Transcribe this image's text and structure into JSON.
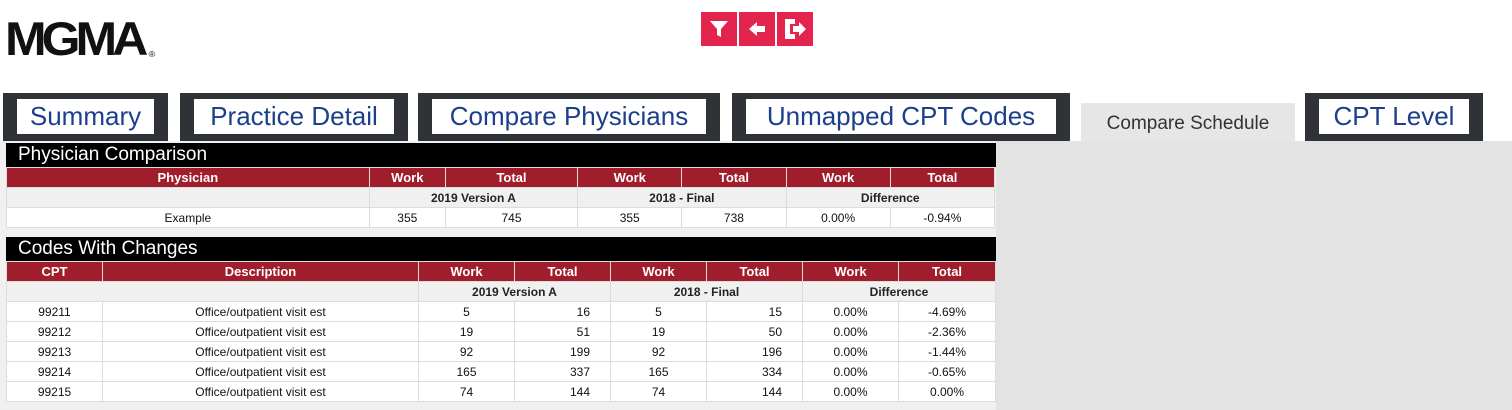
{
  "brand": {
    "logo_text": "MGMA",
    "reg_mark": "®"
  },
  "toolbar": {
    "icons": [
      "filter-icon",
      "back-arrow-icon",
      "exit-icon"
    ],
    "accent": "#e3254e"
  },
  "tabs": [
    {
      "label": "Summary",
      "active": false
    },
    {
      "label": "Practice Detail",
      "active": false
    },
    {
      "label": "Compare Physicians",
      "active": false
    },
    {
      "label": "Unmapped CPT Codes",
      "active": false
    },
    {
      "label": "Compare Schedule",
      "active": true
    },
    {
      "label": "CPT Level",
      "active": false
    }
  ],
  "physician_comparison": {
    "title": "Physician Comparison",
    "headers": [
      "Physician",
      "Work",
      "Total",
      "Work",
      "Total",
      "Work",
      "Total"
    ],
    "groups": [
      "2019 Version A",
      "2018 - Final",
      "Difference"
    ],
    "rows": [
      [
        "Example",
        "355",
        "745",
        "355",
        "738",
        "0.00%",
        "-0.94%"
      ]
    ]
  },
  "codes_with_changes": {
    "title": "Codes With Changes",
    "headers": [
      "CPT",
      "Description",
      "Work",
      "Total",
      "Work",
      "Total",
      "Work",
      "Total"
    ],
    "groups": [
      "2019 Version A",
      "2018 - Final",
      "Difference"
    ],
    "rows": [
      [
        "99211",
        "Office/outpatient visit est",
        "5",
        "16",
        "5",
        "15",
        "0.00%",
        "-4.69%"
      ],
      [
        "99212",
        "Office/outpatient visit est",
        "19",
        "51",
        "19",
        "50",
        "0.00%",
        "-2.36%"
      ],
      [
        "99213",
        "Office/outpatient visit est",
        "92",
        "199",
        "92",
        "196",
        "0.00%",
        "-1.44%"
      ],
      [
        "99214",
        "Office/outpatient visit est",
        "165",
        "337",
        "165",
        "334",
        "0.00%",
        "-0.65%"
      ],
      [
        "99215",
        "Office/outpatient visit est",
        "74",
        "144",
        "74",
        "144",
        "0.00%",
        "0.00%"
      ]
    ]
  },
  "colors": {
    "header_red": "#a01d2b",
    "tab_dark": "#2f3338",
    "tab_text": "#1c3f8c"
  }
}
